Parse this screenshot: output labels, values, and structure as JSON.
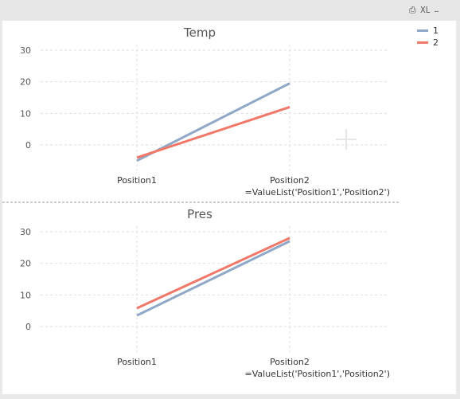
{
  "toolbar": {
    "print_label": "⎙",
    "xl_label": "XL",
    "minimize_label": "_"
  },
  "legend": [
    {
      "name": "1",
      "color": "#8fa8c8"
    },
    {
      "name": "2",
      "color": "#f07869"
    }
  ],
  "chart_data": [
    {
      "type": "line",
      "title": "Temp",
      "categories": [
        "Position1",
        "Position2"
      ],
      "xlabel": "=ValueList('Position1','Position2')",
      "ylabel": "",
      "ylim": [
        -6,
        30
      ],
      "yticks": [
        0,
        10,
        20,
        30
      ],
      "grid": true,
      "series": [
        {
          "name": "1",
          "color": "#8fa8c8",
          "values": [
            -5,
            19.5
          ]
        },
        {
          "name": "2",
          "color": "#f07869",
          "values": [
            -4,
            12
          ]
        }
      ]
    },
    {
      "type": "line",
      "title": "Pres",
      "categories": [
        "Position1",
        "Position2"
      ],
      "xlabel": "=ValueList('Position1','Position2')",
      "ylabel": "",
      "ylim": [
        0,
        30
      ],
      "yticks": [
        0,
        10,
        20,
        30
      ],
      "grid": true,
      "series": [
        {
          "name": "1",
          "color": "#8fa8c8",
          "values": [
            3.5,
            27
          ]
        },
        {
          "name": "2",
          "color": "#f07869",
          "values": [
            5.8,
            28
          ]
        }
      ]
    }
  ]
}
